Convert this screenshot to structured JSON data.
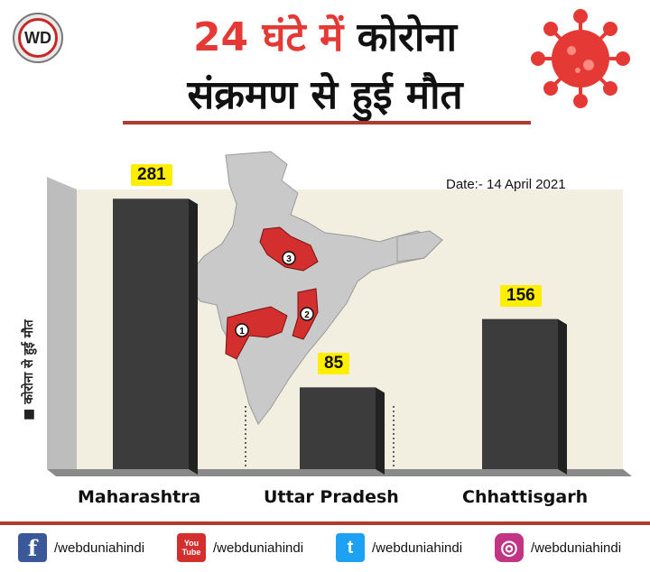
{
  "logo": {
    "text": "WD"
  },
  "title": {
    "line1_number": "24",
    "line1_red": "घंटे में",
    "line1_black": "कोरोना",
    "line2": "संक्रमण से हुई मौत"
  },
  "date_label": "Date:- 14 April 2021",
  "legend_text": "कोरोना से हुई मौत",
  "colors": {
    "accent": "#e53935",
    "bar": "#3c3c3c",
    "highlight": "#ffee00",
    "brand_red": "#b03a2e"
  },
  "chart_data": {
    "type": "bar",
    "title": "24 घंटे में कोरोना संक्रमण से हुई मौत",
    "categories": [
      "Maharashtra",
      "Uttar Pradesh",
      "Chhattisgarh"
    ],
    "values": [
      281,
      85,
      156
    ],
    "ylabel": "कोरोना से हुई मौत",
    "xlabel": "",
    "ylim": [
      0,
      300
    ],
    "value_labels": [
      "281",
      "85",
      "156"
    ],
    "map_markers": [
      "1",
      "2",
      "3"
    ]
  },
  "footer": {
    "items": [
      {
        "icon": "facebook-icon",
        "glyph": "f",
        "handle": "/webduniahindi"
      },
      {
        "icon": "youtube-icon",
        "glyph": "You Tube",
        "handle": "/webduniahindi"
      },
      {
        "icon": "twitter-icon",
        "glyph": "t",
        "handle": "/webduniahindi"
      },
      {
        "icon": "instagram-icon",
        "glyph": "◎",
        "handle": "/webduniahindi"
      }
    ]
  }
}
